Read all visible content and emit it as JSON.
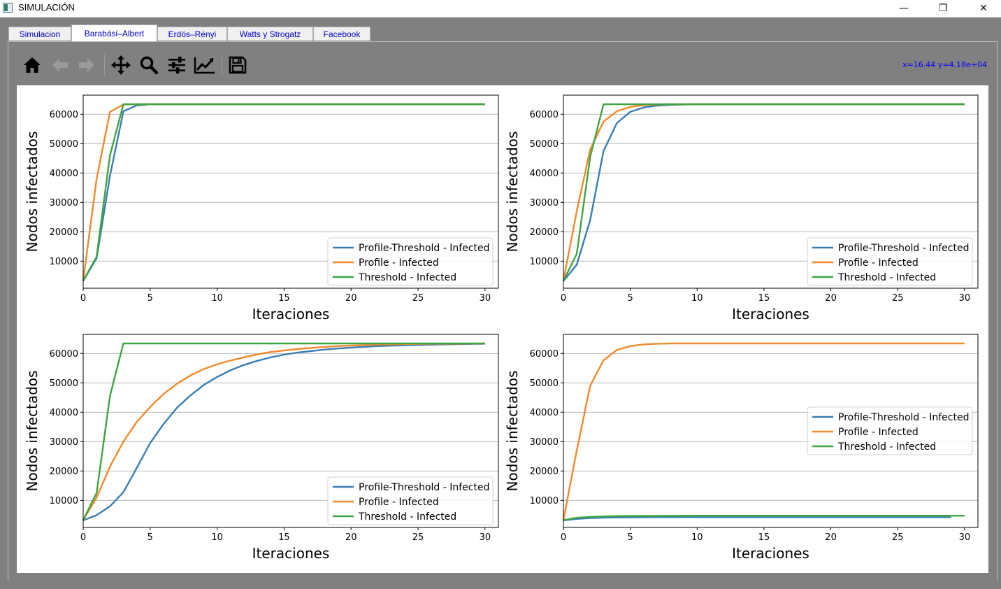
{
  "window": {
    "title": "SIMULACIÓN",
    "minimize_glyph": "—",
    "maximize_glyph": "❐",
    "close_glyph": "✕"
  },
  "tabs": [
    {
      "label": "Simulacion",
      "active": false
    },
    {
      "label": "Barabási–Albert",
      "active": true
    },
    {
      "label": "Erdös–Rényi",
      "active": false
    },
    {
      "label": "Watts y Strogatz",
      "active": false
    },
    {
      "label": "Facebook",
      "active": false
    }
  ],
  "toolbar": {
    "icons": [
      "home-icon",
      "back-arrow-icon",
      "forward-arrow-icon",
      "pan-move-icon",
      "zoom-magnifier-icon",
      "subplots-sliders-icon",
      "edit-curve-icon",
      "save-disk-icon"
    ],
    "coord_readout": "x=16.44 y=4.18e+04"
  },
  "colors": {
    "Profile-Threshold - Infected": "#3a7db3",
    "Profile - Infected": "#f28a2b",
    "Threshold - Infected": "#3fa540"
  },
  "chart_data": [
    {
      "type": "line",
      "title": "",
      "xlabel": "Iteraciones",
      "ylabel": "Nodos infectados",
      "xlim": [
        0,
        31
      ],
      "ylim": [
        800,
        66500
      ],
      "xticks": [
        0,
        5,
        10,
        15,
        20,
        25,
        30
      ],
      "yticks": [
        10000,
        20000,
        30000,
        40000,
        50000,
        60000
      ],
      "grid": "horizontal",
      "legend": "lower-right",
      "series": [
        {
          "name": "Profile-Threshold - Infected",
          "x": [
            0,
            1,
            2,
            3,
            4,
            5,
            30
          ],
          "y": [
            3300,
            11000,
            39000,
            61000,
            63000,
            63400,
            63400
          ]
        },
        {
          "name": "Profile - Infected",
          "x": [
            0,
            1,
            2,
            3,
            4,
            5,
            30
          ],
          "y": [
            3300,
            38000,
            60800,
            63300,
            63400,
            63400,
            63400
          ]
        },
        {
          "name": "Threshold - Infected",
          "x": [
            0,
            1,
            2,
            3,
            4,
            5,
            30
          ],
          "y": [
            3300,
            11500,
            46000,
            63400,
            63400,
            63400,
            63400
          ]
        }
      ]
    },
    {
      "type": "line",
      "title": "",
      "xlabel": "Iteraciones",
      "ylabel": "Nodos infectados",
      "xlim": [
        0,
        31
      ],
      "ylim": [
        800,
        66500
      ],
      "xticks": [
        0,
        5,
        10,
        15,
        20,
        25,
        30
      ],
      "yticks": [
        10000,
        20000,
        30000,
        40000,
        50000,
        60000
      ],
      "grid": "horizontal",
      "legend": "lower-right",
      "series": [
        {
          "name": "Profile-Threshold - Infected",
          "x": [
            0,
            1,
            2,
            3,
            4,
            5,
            6,
            7,
            8,
            9,
            10,
            30
          ],
          "y": [
            3200,
            8800,
            24000,
            47500,
            57000,
            60800,
            62300,
            62900,
            63200,
            63300,
            63400,
            63400
          ]
        },
        {
          "name": "Profile - Infected",
          "x": [
            0,
            1,
            2,
            3,
            4,
            5,
            6,
            7,
            8,
            30
          ],
          "y": [
            3300,
            27000,
            48000,
            57500,
            61000,
            62500,
            63100,
            63300,
            63400,
            63400
          ]
        },
        {
          "name": "Threshold - Infected",
          "x": [
            0,
            1,
            2,
            3,
            4,
            30
          ],
          "y": [
            3300,
            12500,
            45500,
            63400,
            63400,
            63400
          ]
        }
      ]
    },
    {
      "type": "line",
      "title": "",
      "xlabel": "Iteraciones",
      "ylabel": "Nodos infectados",
      "xlim": [
        0,
        31
      ],
      "ylim": [
        800,
        66500
      ],
      "xticks": [
        0,
        5,
        10,
        15,
        20,
        25,
        30
      ],
      "yticks": [
        10000,
        20000,
        30000,
        40000,
        50000,
        60000
      ],
      "grid": "horizontal",
      "legend": "lower-right",
      "series": [
        {
          "name": "Profile-Threshold - Infected",
          "x": [
            0,
            1,
            2,
            3,
            4,
            5,
            6,
            7,
            8,
            9,
            10,
            11,
            12,
            13,
            14,
            15,
            16,
            17,
            18,
            19,
            20,
            22,
            24,
            26,
            28,
            30
          ],
          "y": [
            3200,
            5000,
            8000,
            12800,
            21000,
            29500,
            36000,
            41500,
            45700,
            49300,
            52000,
            54300,
            56100,
            57500,
            58700,
            59600,
            60300,
            60800,
            61300,
            61700,
            62000,
            62500,
            62800,
            63000,
            63200,
            63300
          ]
        },
        {
          "name": "Profile - Infected",
          "x": [
            0,
            1,
            2,
            3,
            4,
            5,
            6,
            7,
            8,
            9,
            10,
            11,
            12,
            13,
            14,
            15,
            16,
            17,
            18,
            19,
            20,
            22,
            24,
            26,
            28,
            30
          ],
          "y": [
            3300,
            11000,
            21500,
            30000,
            36700,
            41800,
            46200,
            49700,
            52500,
            54700,
            56300,
            57600,
            58700,
            59700,
            60500,
            61000,
            61500,
            61900,
            62200,
            62500,
            62700,
            63000,
            63200,
            63300,
            63300,
            63400
          ]
        },
        {
          "name": "Threshold - Infected",
          "x": [
            0,
            1,
            2,
            3,
            4,
            30
          ],
          "y": [
            3300,
            12500,
            45500,
            63400,
            63400,
            63400
          ]
        }
      ]
    },
    {
      "type": "line",
      "title": "",
      "xlabel": "Iteraciones",
      "ylabel": "Nodos infectados",
      "xlim": [
        0,
        31
      ],
      "ylim": [
        800,
        66500
      ],
      "xticks": [
        0,
        5,
        10,
        15,
        20,
        25,
        30
      ],
      "yticks": [
        10000,
        20000,
        30000,
        40000,
        50000,
        60000
      ],
      "grid": "horizontal",
      "legend": "center-right",
      "series": [
        {
          "name": "Profile-Threshold - Infected",
          "x": [
            0,
            1,
            2,
            3,
            4,
            5,
            7,
            10,
            15,
            20,
            25,
            29
          ],
          "y": [
            3200,
            3700,
            4000,
            4100,
            4200,
            4250,
            4300,
            4300,
            4300,
            4300,
            4300,
            4300
          ]
        },
        {
          "name": "Profile - Infected",
          "x": [
            0,
            1,
            2,
            3,
            4,
            5,
            6,
            7,
            8,
            10,
            30
          ],
          "y": [
            3300,
            27000,
            49000,
            57700,
            61200,
            62500,
            63100,
            63300,
            63400,
            63400,
            63400
          ]
        },
        {
          "name": "Threshold - Infected",
          "x": [
            0,
            1,
            2,
            3,
            4,
            5,
            7,
            10,
            15,
            20,
            25,
            30
          ],
          "y": [
            3300,
            4100,
            4400,
            4550,
            4650,
            4700,
            4750,
            4800,
            4800,
            4800,
            4800,
            4800
          ]
        }
      ]
    }
  ]
}
